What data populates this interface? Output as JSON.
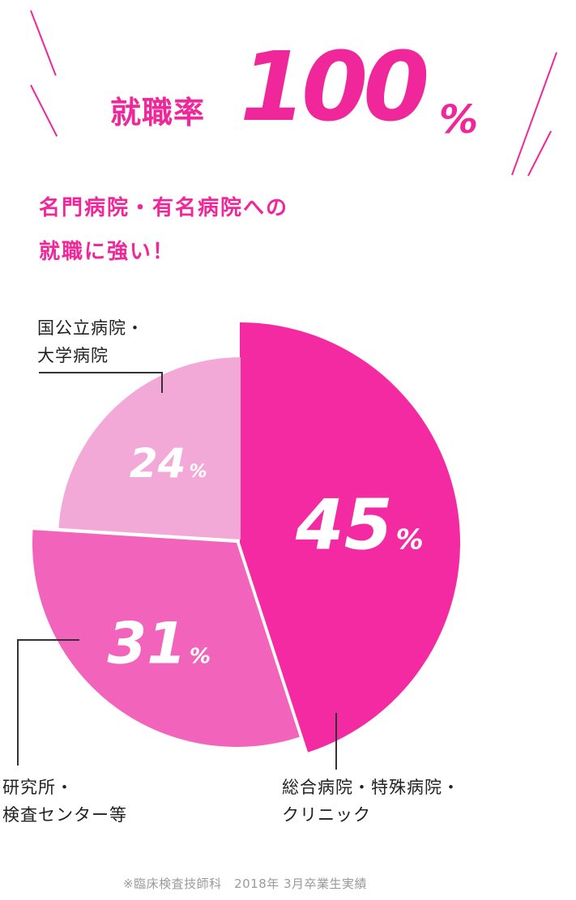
{
  "headline": {
    "label": "就職率",
    "value": "100",
    "unit": "%"
  },
  "subheading": {
    "line1": "名門病院・有名病院への",
    "line2": "就職に強い！"
  },
  "chart_data": {
    "type": "pie",
    "unit": "%",
    "slices": [
      {
        "label_line1": "総合病院・特殊病院・",
        "label_line2": "クリニック",
        "value": 45,
        "color": "#f42aa2"
      },
      {
        "label_line1": "研究所・",
        "label_line2": "検査センター等",
        "value": 31,
        "color": "#f264bc"
      },
      {
        "label_line1": "国公立病院・",
        "label_line2": "大学病院",
        "value": 24,
        "color": "#f3a9d7"
      }
    ]
  },
  "colors": {
    "accent": "#f0279a",
    "leader_line": "#333333",
    "footnote": "#9a9a9a"
  },
  "footnote": "※臨床検査技師科　2018年 3月卒業生実績"
}
